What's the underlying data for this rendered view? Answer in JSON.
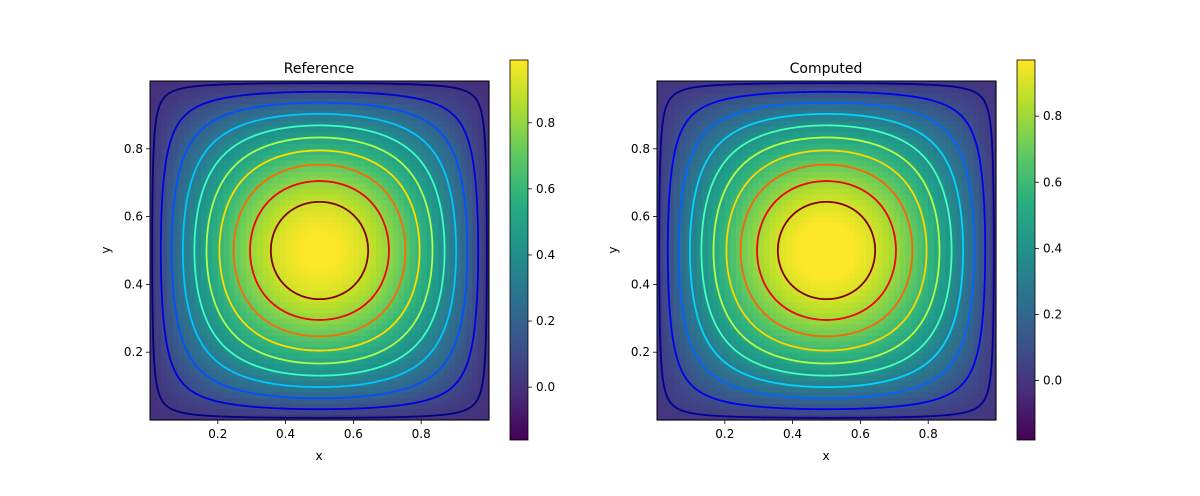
{
  "chart_data": [
    {
      "type": "heatmap",
      "subtype": "filled-image-with-contour-lines",
      "title": "Reference",
      "xlabel": "x",
      "ylabel": "y",
      "xlim": [
        0,
        1
      ],
      "ylim": [
        0,
        1
      ],
      "xticks": [
        0.2,
        0.4,
        0.6,
        0.8
      ],
      "yticks": [
        0.2,
        0.4,
        0.6,
        0.8
      ],
      "colormap": "viridis",
      "contour_colormap": "jet",
      "field": "sin(pi*x)*sin(pi*y)",
      "value_range": [
        -0.16,
        0.99
      ],
      "contour_levels": [
        0.02,
        0.1,
        0.2,
        0.3,
        0.4,
        0.5,
        0.6,
        0.7,
        0.8,
        0.9
      ],
      "colorbar": {
        "ticks": [
          0.0,
          0.2,
          0.4,
          0.6,
          0.8
        ],
        "tick_labels": [
          "0.0",
          "0.2",
          "0.4",
          "0.6",
          "0.8"
        ]
      }
    },
    {
      "type": "heatmap",
      "subtype": "filled-image-with-contour-lines",
      "title": "Computed",
      "xlabel": "x",
      "ylabel": "y",
      "xlim": [
        0,
        1
      ],
      "ylim": [
        0,
        1
      ],
      "xticks": [
        0.2,
        0.4,
        0.6,
        0.8
      ],
      "yticks": [
        0.2,
        0.4,
        0.6,
        0.8
      ],
      "colormap": "viridis",
      "contour_colormap": "jet",
      "field": "sin(pi*x)*sin(pi*y)",
      "value_range": [
        -0.18,
        0.97
      ],
      "contour_levels": [
        0.0,
        0.02,
        0.1,
        0.2,
        0.3,
        0.4,
        0.5,
        0.6,
        0.7,
        0.8,
        0.9
      ],
      "colorbar": {
        "ticks": [
          0.0,
          0.2,
          0.4,
          0.6,
          0.8
        ],
        "tick_labels": [
          "0.0",
          "0.2",
          "0.4",
          "0.6",
          "0.8"
        ]
      }
    }
  ]
}
